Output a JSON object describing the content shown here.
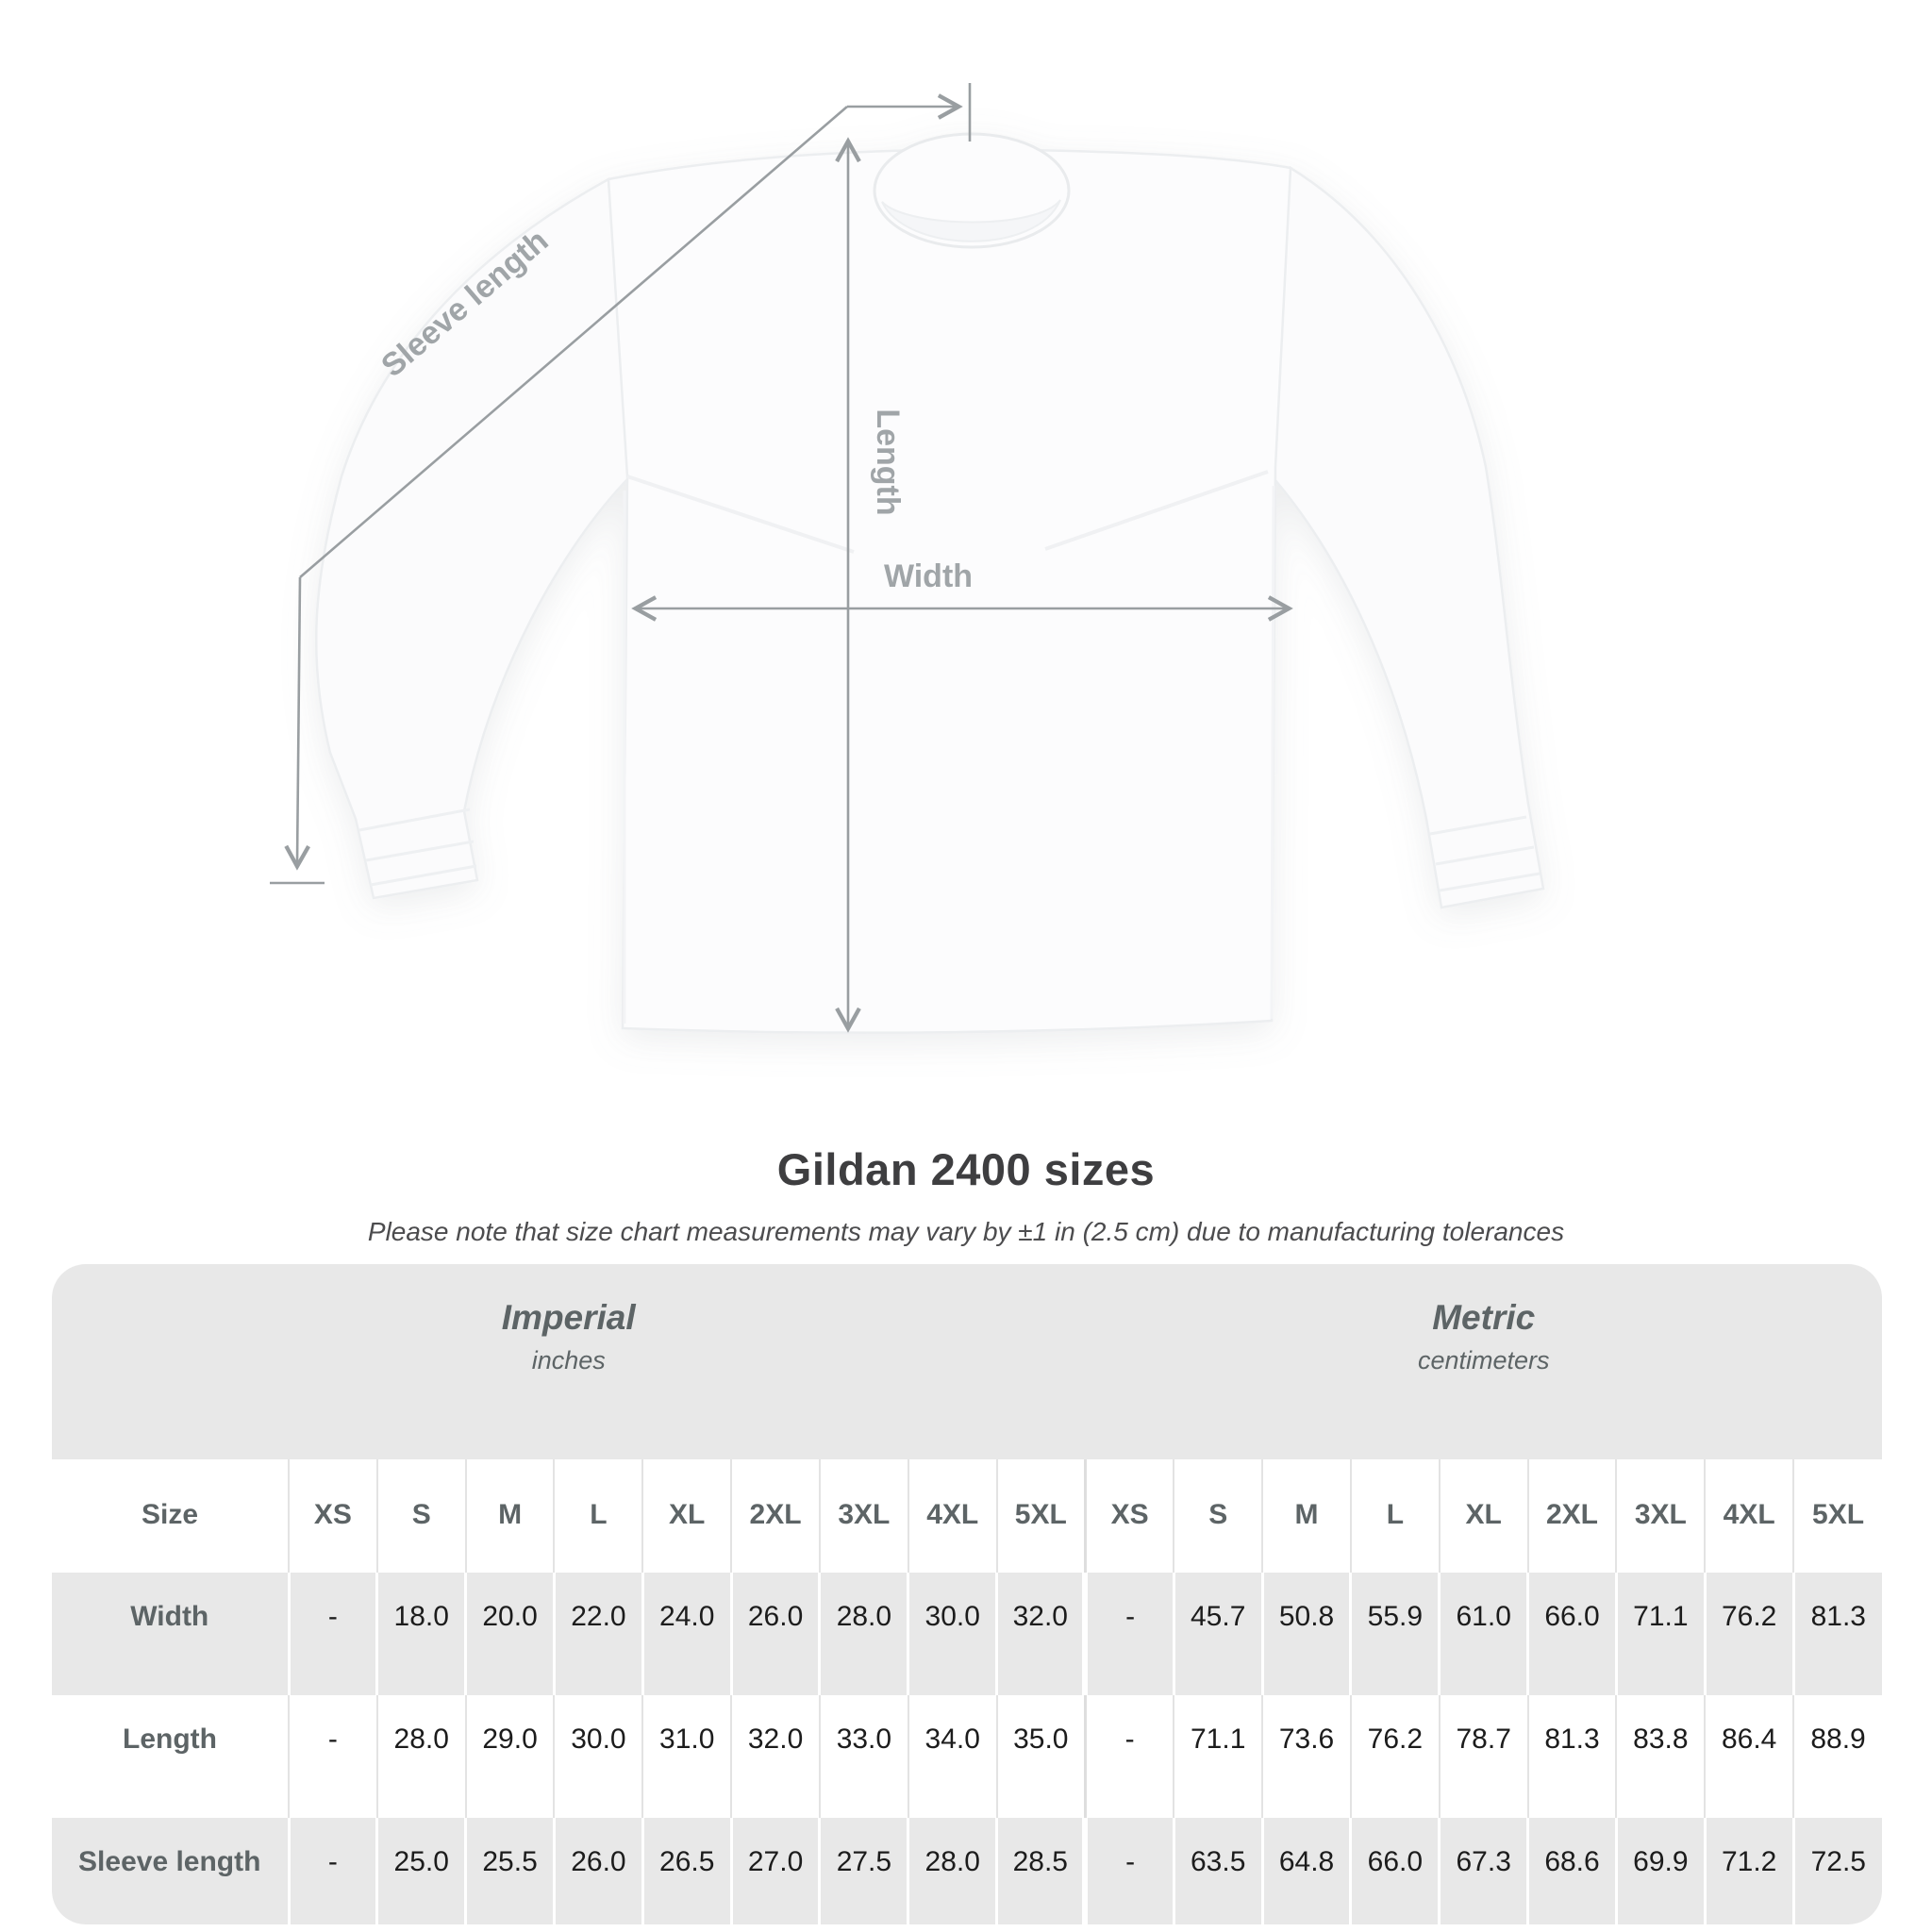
{
  "title": "Gildan 2400 sizes",
  "subtitle": "Please note that size chart measurements may vary by ±1 in (2.5 cm) due to manufacturing tolerances",
  "diagram": {
    "sleeve_length_label": "Sleeve length",
    "length_label": "Length",
    "width_label": "Width",
    "arrow_color": "#999ea1",
    "label_color": "#a0a5a8"
  },
  "colors": {
    "table_band_gray": "#e8e8e8",
    "header_text_gray": "#5d6466",
    "number_text": "#1c1c1c",
    "title_text": "#3e3e40"
  },
  "chart_data": {
    "type": "table",
    "title": "Gildan 2400 sizes",
    "note": "Please note that size chart measurements may vary by ±1 in (2.5 cm) due to manufacturing tolerances",
    "unit_groups": [
      {
        "label": "Imperial",
        "unit": "inches"
      },
      {
        "label": "Metric",
        "unit": "centimeters"
      }
    ],
    "size_header": "Size",
    "sizes": [
      "XS",
      "S",
      "M",
      "L",
      "XL",
      "2XL",
      "3XL",
      "4XL",
      "5XL"
    ],
    "rows": [
      {
        "label": "Width",
        "imperial": [
          "-",
          "18.0",
          "20.0",
          "22.0",
          "24.0",
          "26.0",
          "28.0",
          "30.0",
          "32.0"
        ],
        "metric": [
          "-",
          "45.7",
          "50.8",
          "55.9",
          "61.0",
          "66.0",
          "71.1",
          "76.2",
          "81.3"
        ]
      },
      {
        "label": "Length",
        "imperial": [
          "-",
          "28.0",
          "29.0",
          "30.0",
          "31.0",
          "32.0",
          "33.0",
          "34.0",
          "35.0"
        ],
        "metric": [
          "-",
          "71.1",
          "73.6",
          "76.2",
          "78.7",
          "81.3",
          "83.8",
          "86.4",
          "88.9"
        ]
      },
      {
        "label": "Sleeve length",
        "imperial": [
          "-",
          "25.0",
          "25.5",
          "26.0",
          "26.5",
          "27.0",
          "27.5",
          "28.0",
          "28.5"
        ],
        "metric": [
          "-",
          "63.5",
          "64.8",
          "66.0",
          "67.3",
          "68.6",
          "69.9",
          "71.2",
          "72.5"
        ]
      }
    ]
  }
}
